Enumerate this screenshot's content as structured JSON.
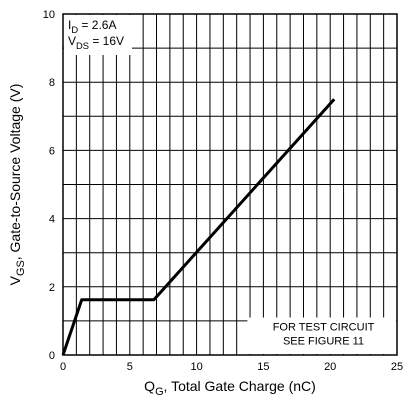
{
  "chart_data": {
    "type": "line",
    "title": "",
    "xlabel": {
      "main": "Q",
      "sub": "G",
      "rest": ", Total Gate Charge (nC)"
    },
    "ylabel": {
      "main": "V",
      "sub": "GS",
      "rest": ", Gate-to-Source Voltage (V)"
    },
    "xlim": [
      0,
      25
    ],
    "ylim": [
      0,
      10
    ],
    "grid": true,
    "x_ticks": [
      0,
      5,
      10,
      15,
      20,
      25
    ],
    "x_tick_labels": [
      "0",
      "5",
      "10",
      "15",
      "20",
      "25"
    ],
    "y_ticks": [
      0,
      2,
      4,
      6,
      8,
      10
    ],
    "y_tick_labels": [
      "0",
      "2",
      "4",
      "6",
      "8",
      "10"
    ],
    "series": [
      {
        "x": [
          0,
          1.4,
          6.8,
          20.3
        ],
        "y": [
          0,
          1.62,
          1.62,
          7.5
        ]
      }
    ],
    "conditions": [
      {
        "main": "I",
        "sub": "D",
        "rest": " = 2.6A"
      },
      {
        "main": "V",
        "sub": "DS",
        "rest": " = 16V"
      }
    ],
    "note_lines": [
      "FOR TEST CIRCUIT",
      "SEE FIGURE 11"
    ]
  }
}
